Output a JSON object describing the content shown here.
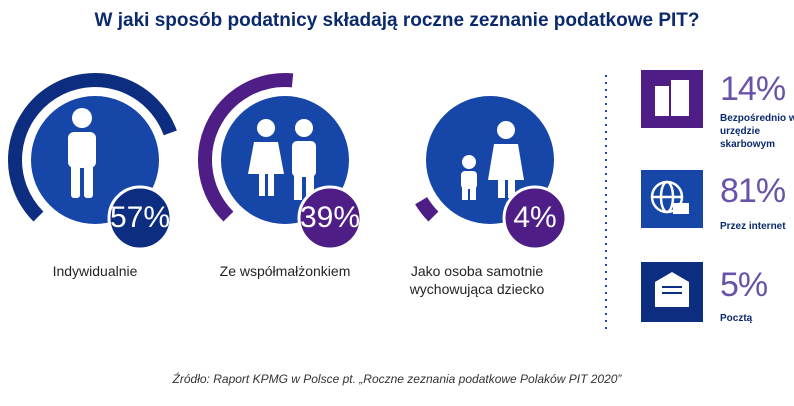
{
  "title": "W jaki sposób podatnicy składają roczne zeznanie podatkowe PIT?",
  "groups": [
    {
      "label": "Indywidualnie",
      "value": 57,
      "value_label": "57%",
      "arc_color": "#0d2d80"
    },
    {
      "label": "Ze współmałżonkiem",
      "value": 39,
      "value_label": "39%",
      "arc_color": "#4e1d86"
    },
    {
      "label": "Jako osoba samotnie wychowująca dziecko",
      "value": 4,
      "value_label": "4%",
      "arc_color": "#4e1d86"
    }
  ],
  "channels": [
    {
      "value": 14,
      "value_label": "14%",
      "label": "Bezpośrednio w urzędzie skarbowym"
    },
    {
      "value": 81,
      "value_label": "81%",
      "label": "Przez internet"
    },
    {
      "value": 5,
      "value_label": "5%",
      "label": "Pocztą"
    }
  ],
  "source": "Źródło: Raport KPMG w Polsce pt. „Roczne zeznania podatkowe Polaków PIT 2020”"
}
